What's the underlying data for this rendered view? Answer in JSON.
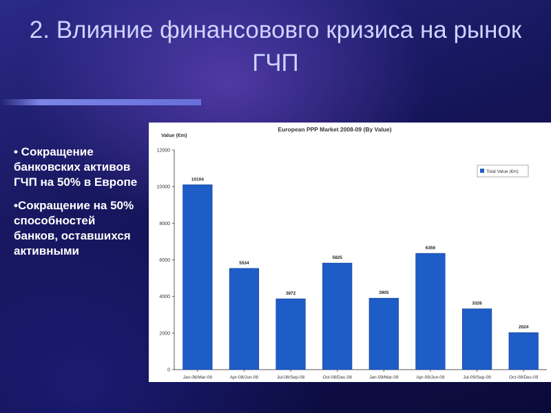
{
  "slide": {
    "title": "2. Влияние финансововго кризиса на рынок ГЧП",
    "bullets": [
      "• Сокращение банковских активов ГЧП на 50% в Европе",
      "•Сокращение на 50% способностей банков, оставшихся активными"
    ]
  },
  "chart_data": {
    "type": "bar",
    "title": "European PPP Market 2008-09 (By Value)",
    "ylabel": "Value (€m)",
    "xlabel": "",
    "categories": [
      "Jan-08/Mar-08",
      "Apr-08/Jun-08",
      "Jul-08/Sep-08",
      "Oct-08/Dec-08",
      "Jan-09/Mar-09",
      "Apr-09/Jun-09",
      "Jul-09/Sep-09",
      "Oct-09/Dec-09"
    ],
    "series": [
      {
        "name": "Total Value (€m)",
        "values": [
          10104,
          5534,
          3872,
          5825,
          3905,
          6356,
          3326,
          2024
        ]
      }
    ],
    "ylim": [
      0,
      12000
    ],
    "yticks": [
      0,
      2000,
      4000,
      6000,
      8000,
      10000,
      12000
    ],
    "bar_color": "#1e5cc8",
    "legend_position": "top-right",
    "grid": false
  }
}
